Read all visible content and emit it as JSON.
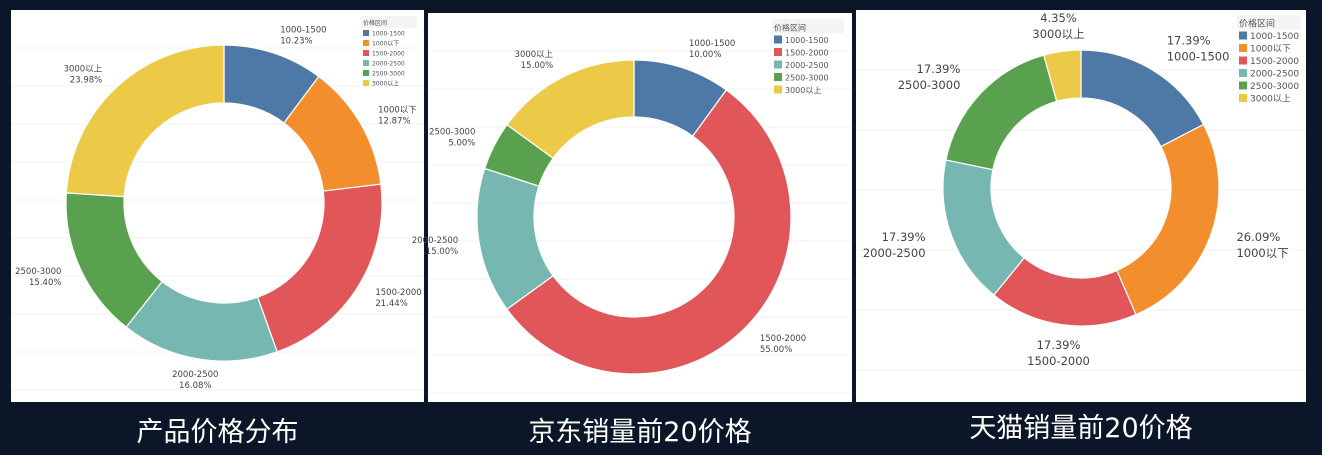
{
  "legend_title": "价格区间",
  "colors": {
    "blue": "#4e79a7",
    "orange": "#f28e2b",
    "red": "#e15759",
    "teal": "#76b7b2",
    "green": "#59a14f",
    "yellow": "#edc948"
  },
  "chart_data": [
    {
      "type": "pie",
      "title": "产品价格分布",
      "legend": [
        "1000-1500",
        "1000以下",
        "1500-2000",
        "2000-2500",
        "2500-3000",
        "3000以上"
      ],
      "slices": [
        {
          "category": "1000-1500",
          "value": 10.23,
          "label": "10.23%",
          "color": "#4e79a7"
        },
        {
          "category": "1000以下",
          "value": 12.87,
          "label": "12.87%",
          "color": "#f28e2b"
        },
        {
          "category": "1500-2000",
          "value": 21.44,
          "label": "21.44%",
          "color": "#e15759"
        },
        {
          "category": "2000-2500",
          "value": 16.08,
          "label": "16.08%",
          "color": "#76b7b2"
        },
        {
          "category": "2500-3000",
          "value": 15.4,
          "label": "15.40%",
          "color": "#59a14f"
        },
        {
          "category": "3000以上",
          "value": 23.98,
          "label": "23.98%",
          "color": "#edc948"
        }
      ]
    },
    {
      "type": "pie",
      "title": "京东销量前20价格",
      "legend": [
        "1000-1500",
        "1500-2000",
        "2000-2500",
        "2500-3000",
        "3000以上"
      ],
      "slices": [
        {
          "category": "1000-1500",
          "value": 10.0,
          "label": "10.00%",
          "color": "#4e79a7"
        },
        {
          "category": "1500-2000",
          "value": 55.0,
          "label": "55.00%",
          "color": "#e15759"
        },
        {
          "category": "2000-2500",
          "value": 15.0,
          "label": "15.00%",
          "color": "#76b7b2"
        },
        {
          "category": "2500-3000",
          "value": 5.0,
          "label": "5.00%",
          "color": "#59a14f"
        },
        {
          "category": "3000以上",
          "value": 15.0,
          "label": "15.00%",
          "color": "#edc948"
        }
      ]
    },
    {
      "type": "pie",
      "title": "天猫销量前20价格",
      "legend": [
        "1000-1500",
        "1000以下",
        "1500-2000",
        "2000-2500",
        "2500-3000",
        "3000以上"
      ],
      "slices": [
        {
          "category": "1000-1500",
          "value": 17.39,
          "label": "17.39%",
          "color": "#4e79a7"
        },
        {
          "category": "1000以下",
          "value": 26.09,
          "label": "26.09%",
          "color": "#f28e2b"
        },
        {
          "category": "1500-2000",
          "value": 17.39,
          "label": "17.39%",
          "color": "#e15759"
        },
        {
          "category": "2000-2500",
          "value": 17.39,
          "label": "17.39%",
          "color": "#76b7b2"
        },
        {
          "category": "2500-3000",
          "value": 17.39,
          "label": "17.39%",
          "color": "#59a14f"
        },
        {
          "category": "3000以上",
          "value": 4.35,
          "label": "4.35%",
          "color": "#edc948"
        }
      ]
    }
  ]
}
